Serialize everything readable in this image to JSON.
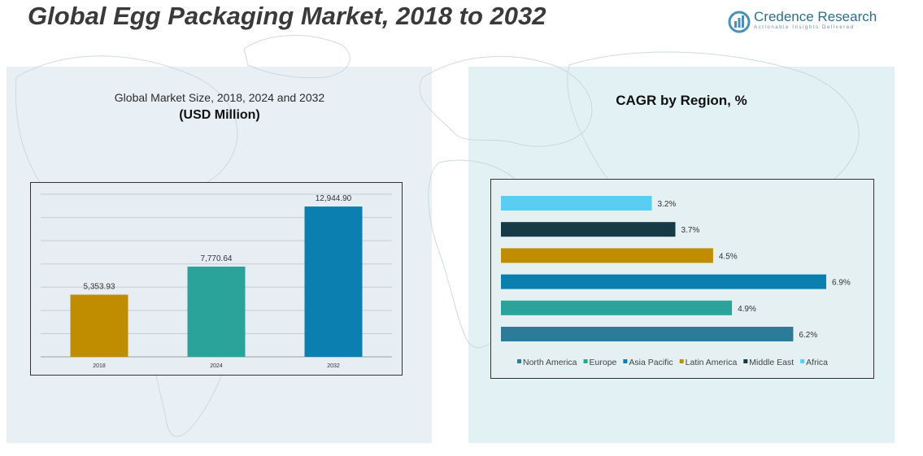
{
  "header": {
    "title": "Global Egg Packaging Market, 2018 to 2032"
  },
  "logo": {
    "name": "Credence Research",
    "tagline": "Actionable Insights Delivered"
  },
  "left_panel": {
    "subtitle": "Global Market Size, 2018, 2024 and 2032",
    "unit": "(USD Million)"
  },
  "right_panel": {
    "title": "CAGR by Region, %"
  },
  "chart_data": [
    {
      "type": "bar",
      "title": "Global Market Size, 2018, 2024 and 2032",
      "ylabel": "USD Million",
      "categories": [
        "2018",
        "2024",
        "2032"
      ],
      "values": [
        5353.93,
        7770.64,
        12944.9
      ],
      "labels": [
        "5,353.93",
        "7,770.64",
        "12,944.90"
      ],
      "colors": [
        "#c08c00",
        "#2aa39b",
        "#0b7fb0"
      ],
      "ylim": [
        0,
        14000
      ],
      "grid": true
    },
    {
      "type": "bar",
      "orientation": "horizontal",
      "title": "CAGR by Region, %",
      "categories": [
        "Africa",
        "Middle East",
        "Latin America",
        "Asia Pacific",
        "Europe",
        "North America"
      ],
      "values": [
        3.2,
        3.7,
        4.5,
        6.9,
        4.9,
        6.2
      ],
      "labels": [
        "3.2%",
        "3.7%",
        "4.5%",
        "6.9%",
        "4.9%",
        "6.2%"
      ],
      "colors": [
        "#5ccdf2",
        "#173a47",
        "#c08c00",
        "#0b7fb0",
        "#2aa39b",
        "#2c7b98"
      ],
      "xlim": [
        0,
        7.4
      ],
      "legend": [
        "North America",
        "Europe",
        "Asia Pacific",
        "Latin America",
        "Middle East",
        "Africa"
      ],
      "legend_colors": [
        "#2c7b98",
        "#2aa39b",
        "#0b7fb0",
        "#c08c00",
        "#173a47",
        "#5ccdf2"
      ],
      "legend_position": "bottom"
    }
  ]
}
